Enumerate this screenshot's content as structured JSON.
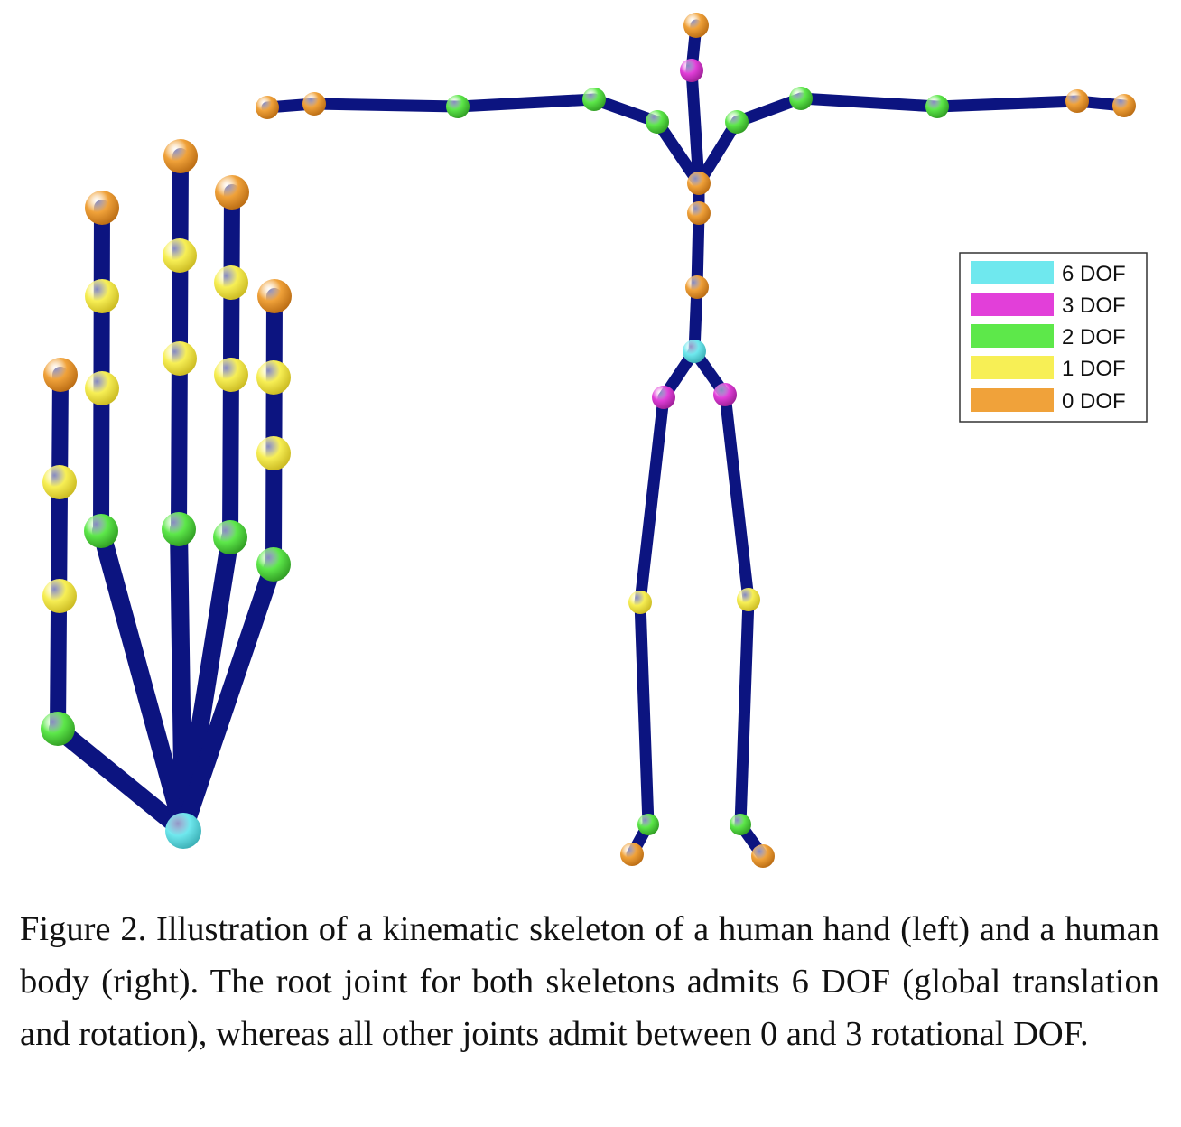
{
  "colors": {
    "bone": "#0c1480",
    "6 DOF": "#6fe8ee",
    "3 DOF": "#e23fd9",
    "2 DOF": "#5de84a",
    "1 DOF": "#f7ef55",
    "0 DOF": "#f0a23a"
  },
  "legend": [
    {
      "label": "6 DOF",
      "color": "#6fe8ee"
    },
    {
      "label": "3 DOF",
      "color": "#e23fd9"
    },
    {
      "label": "2 DOF",
      "color": "#5de84a"
    },
    {
      "label": "1 DOF",
      "color": "#f7ef55"
    },
    {
      "label": "0 DOF",
      "color": "#f0a23a"
    }
  ],
  "caption": "Figure 2. Illustration of a kinematic skeleton of a human hand (left) and a human body (right). The root joint for both skeletons admits 6 DOF (global translation and rotation), whereas all other joints admit between 0 and 3 rotational DOF."
}
